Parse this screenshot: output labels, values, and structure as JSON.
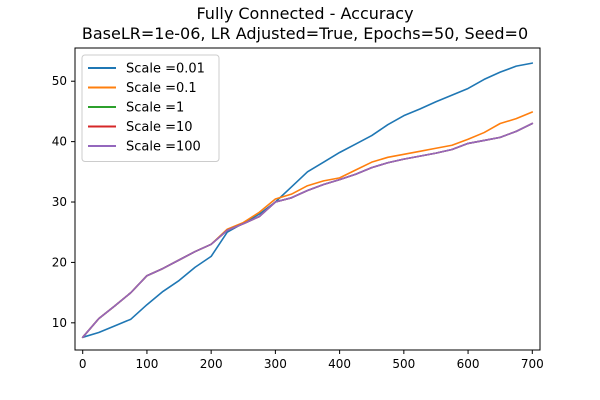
{
  "chart_data": {
    "type": "line",
    "title": "Fully Connected - Accuracy",
    "subtitle": "BaseLR=1e-06, LR Adjusted=True, Epochs=50, Seed=0",
    "xlabel": "",
    "ylabel": "",
    "xlim": [
      -12,
      712
    ],
    "ylim": [
      5.5,
      55.5
    ],
    "xticks": [
      0,
      100,
      200,
      300,
      400,
      500,
      600,
      700
    ],
    "yticks": [
      10,
      20,
      30,
      40,
      50
    ],
    "grid": false,
    "legend_position": "upper-left",
    "x": [
      0,
      25,
      50,
      75,
      100,
      125,
      150,
      175,
      200,
      225,
      250,
      275,
      300,
      325,
      350,
      375,
      400,
      425,
      450,
      475,
      500,
      525,
      550,
      575,
      600,
      625,
      650,
      675,
      700
    ],
    "series": [
      {
        "name": "Scale =0.01",
        "color": "#1f77b4",
        "values": [
          7.6,
          8.4,
          9.5,
          10.6,
          13.0,
          15.2,
          17.0,
          19.2,
          21.0,
          25.0,
          26.5,
          28.0,
          30.0,
          32.5,
          35.0,
          36.6,
          38.2,
          39.6,
          41.0,
          42.8,
          44.3,
          45.4,
          46.6,
          47.7,
          48.8,
          50.3,
          51.5,
          52.5,
          53.0
        ]
      },
      {
        "name": "Scale =0.1",
        "color": "#ff7f0e",
        "values": [
          7.6,
          10.7,
          12.8,
          15.0,
          17.8,
          19.0,
          20.4,
          21.8,
          23.0,
          25.5,
          26.6,
          28.3,
          30.5,
          31.3,
          32.7,
          33.5,
          34.0,
          35.3,
          36.6,
          37.4,
          37.9,
          38.4,
          38.9,
          39.4,
          40.4,
          41.5,
          43.0,
          43.8,
          44.9
        ]
      },
      {
        "name": "Scale =1",
        "color": "#2ca02c",
        "values": [
          7.6,
          10.7,
          12.8,
          15.0,
          17.8,
          19.0,
          20.4,
          21.8,
          23.0,
          25.3,
          26.4,
          27.6,
          30.0,
          30.7,
          31.9,
          32.9,
          33.7,
          34.6,
          35.7,
          36.5,
          37.1,
          37.6,
          38.1,
          38.7,
          39.7,
          40.2,
          40.7,
          41.7,
          43.0
        ]
      },
      {
        "name": "Scale =10",
        "color": "#d62728",
        "values": [
          7.6,
          10.7,
          12.8,
          15.0,
          17.8,
          19.0,
          20.4,
          21.8,
          23.0,
          25.3,
          26.4,
          27.6,
          30.0,
          30.7,
          31.9,
          32.9,
          33.7,
          34.6,
          35.7,
          36.5,
          37.1,
          37.6,
          38.1,
          38.7,
          39.7,
          40.2,
          40.7,
          41.7,
          43.0
        ]
      },
      {
        "name": "Scale =100",
        "color": "#9467bd",
        "values": [
          7.6,
          10.7,
          12.8,
          15.0,
          17.8,
          19.0,
          20.4,
          21.8,
          23.0,
          25.3,
          26.4,
          27.6,
          30.0,
          30.7,
          31.9,
          32.9,
          33.7,
          34.6,
          35.7,
          36.5,
          37.1,
          37.6,
          38.1,
          38.7,
          39.7,
          40.2,
          40.7,
          41.7,
          43.0
        ]
      }
    ]
  }
}
